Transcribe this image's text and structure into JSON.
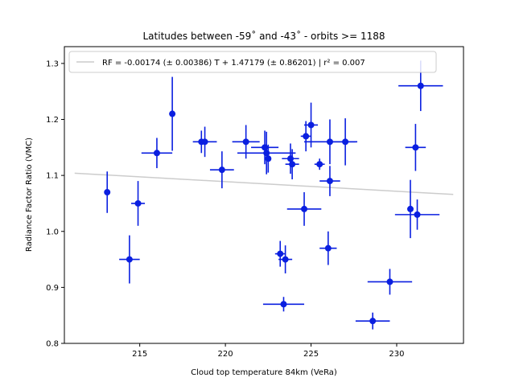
{
  "chart_data": {
    "type": "scatter",
    "title": "Latitudes between -59˚ and -43˚ - orbits >= 1188",
    "xlabel": "Cloud top temperature 84km (VeRa)",
    "ylabel": "Radiance Factor Ratio (VMC)",
    "xlim": [
      210.6,
      233.9
    ],
    "ylim": [
      0.8,
      1.33
    ],
    "xticks": [
      215,
      220,
      225,
      230
    ],
    "xtick_labels": [
      "215",
      "220",
      "225",
      "230"
    ],
    "yticks": [
      0.8,
      0.9,
      1.0,
      1.1,
      1.2,
      1.3
    ],
    "ytick_labels": [
      "0.8",
      "0.9",
      "1.0",
      "1.1",
      "1.2",
      "1.3"
    ],
    "grid": false,
    "legend": {
      "placement": "top-left",
      "entries": [
        "RF = -0.00174 (± 0.00386) T + 1.47179 (± 0.86201) | r² = 0.007"
      ]
    },
    "fit_line": {
      "x": [
        211.2,
        233.3
      ],
      "y": [
        1.104,
        1.066
      ],
      "color": "#cccccc"
    },
    "points_color": "#0a1fe0",
    "points": [
      {
        "x": 213.1,
        "y": 1.07,
        "xerr": 0.0,
        "yerr": 0.037
      },
      {
        "x": 214.4,
        "y": 0.95,
        "xerr": 0.6,
        "yerr": 0.043
      },
      {
        "x": 214.9,
        "y": 1.05,
        "xerr": 0.4,
        "yerr": 0.04
      },
      {
        "x": 216.0,
        "y": 1.14,
        "xerr": 0.9,
        "yerr": 0.027
      },
      {
        "x": 216.9,
        "y": 1.21,
        "xerr": 0.0,
        "yerr": 0.066
      },
      {
        "x": 218.6,
        "y": 1.16,
        "xerr": 0.0,
        "yerr": 0.02
      },
      {
        "x": 218.8,
        "y": 1.16,
        "xerr": 0.7,
        "yerr": 0.027
      },
      {
        "x": 219.8,
        "y": 1.11,
        "xerr": 0.7,
        "yerr": 0.033
      },
      {
        "x": 221.2,
        "y": 1.16,
        "xerr": 0.8,
        "yerr": 0.03
      },
      {
        "x": 222.3,
        "y": 1.15,
        "xerr": 0.8,
        "yerr": 0.03
      },
      {
        "x": 222.4,
        "y": 1.14,
        "xerr": 1.7,
        "yerr": 0.038
      },
      {
        "x": 222.5,
        "y": 1.13,
        "xerr": 0.0,
        "yerr": 0.025
      },
      {
        "x": 223.2,
        "y": 0.96,
        "xerr": 0.3,
        "yerr": 0.023
      },
      {
        "x": 223.4,
        "y": 0.87,
        "xerr": 1.2,
        "yerr": 0.013
      },
      {
        "x": 223.5,
        "y": 0.95,
        "xerr": 0.4,
        "yerr": 0.025
      },
      {
        "x": 223.8,
        "y": 1.13,
        "xerr": 0.5,
        "yerr": 0.027
      },
      {
        "x": 223.9,
        "y": 1.12,
        "xerr": 0.4,
        "yerr": 0.027
      },
      {
        "x": 224.6,
        "y": 1.04,
        "xerr": 1.0,
        "yerr": 0.03
      },
      {
        "x": 224.7,
        "y": 1.17,
        "xerr": 0.3,
        "yerr": 0.027
      },
      {
        "x": 225.0,
        "y": 1.19,
        "xerr": 0.4,
        "yerr": 0.04
      },
      {
        "x": 225.5,
        "y": 1.12,
        "xerr": 0.3,
        "yerr": 0.01
      },
      {
        "x": 226.0,
        "y": 0.97,
        "xerr": 0.5,
        "yerr": 0.03
      },
      {
        "x": 226.1,
        "y": 1.16,
        "xerr": 1.5,
        "yerr": 0.04
      },
      {
        "x": 226.1,
        "y": 1.09,
        "xerr": 0.6,
        "yerr": 0.027
      },
      {
        "x": 227.0,
        "y": 1.16,
        "xerr": 0.7,
        "yerr": 0.042
      },
      {
        "x": 228.6,
        "y": 0.84,
        "xerr": 1.0,
        "yerr": 0.015
      },
      {
        "x": 229.6,
        "y": 0.91,
        "xerr": 1.3,
        "yerr": 0.023
      },
      {
        "x": 230.8,
        "y": 1.04,
        "xerr": 0.0,
        "yerr": 0.052
      },
      {
        "x": 231.1,
        "y": 1.15,
        "xerr": 0.6,
        "yerr": 0.042
      },
      {
        "x": 231.2,
        "y": 1.03,
        "xerr": 1.3,
        "yerr": 0.027
      },
      {
        "x": 231.4,
        "y": 1.26,
        "xerr": 1.3,
        "yerr": 0.045
      }
    ]
  }
}
